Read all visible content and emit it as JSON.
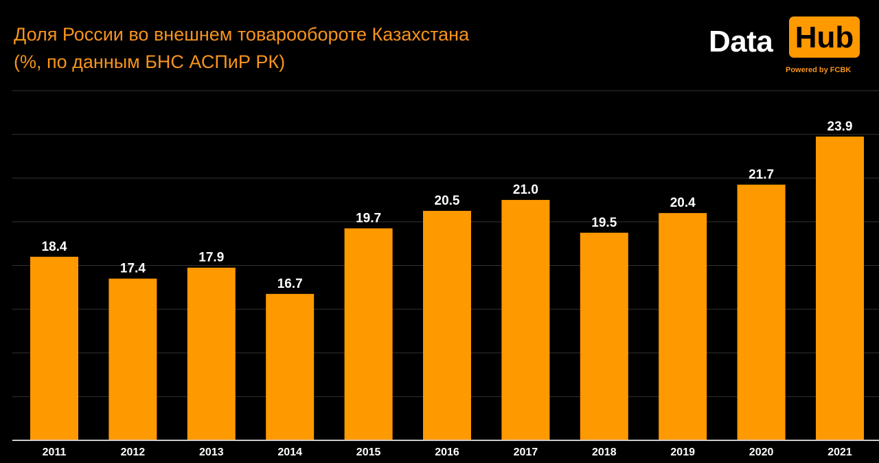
{
  "chart_data": {
    "type": "bar",
    "title": "Доля России во внешнем товарообороте Казахстана",
    "subtitle": "(%, по данным БНС АСПиР РК)",
    "categories": [
      "2011",
      "2012",
      "2013",
      "2014",
      "2015",
      "2016",
      "2017",
      "2018",
      "2019",
      "2020",
      "2021"
    ],
    "values": [
      18.4,
      17.4,
      17.9,
      16.7,
      19.7,
      20.5,
      21.0,
      19.5,
      20.4,
      21.7,
      23.9
    ],
    "value_labels": [
      "18.4",
      "17.4",
      "17.9",
      "16.7",
      "19.7",
      "20.5",
      "21.0",
      "19.5",
      "20.4",
      "21.7",
      "23.9"
    ],
    "xlabel": "",
    "ylabel": "",
    "ylim": [
      10,
      26
    ],
    "grid_step": 2,
    "grid": true,
    "bar_color": "#ff9900"
  },
  "logo": {
    "word1": "Data",
    "word2": "Hub",
    "tagline": "Powered by FCBK"
  }
}
